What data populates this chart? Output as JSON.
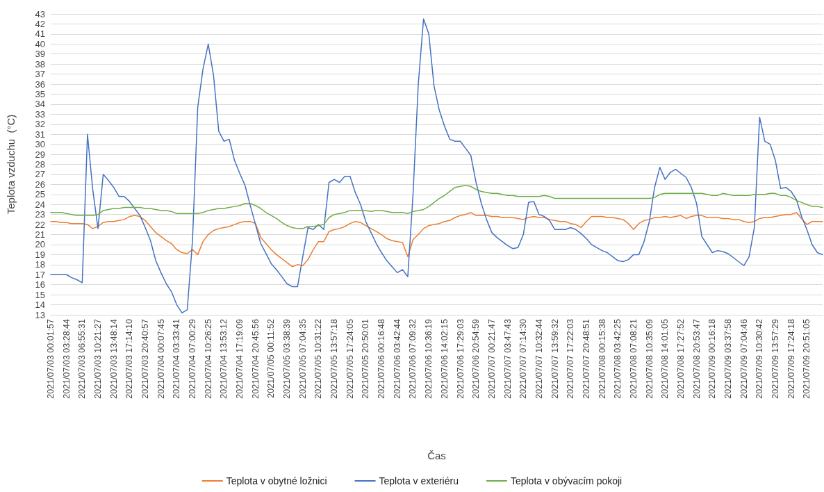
{
  "chart_data": {
    "type": "line",
    "xlabel": "Čas",
    "ylabel": "Teplota vzduchu  (°C)",
    "categories": [
      "2021/07/03 00:01:57",
      null,
      null,
      "2021/07/03 03:28:44",
      null,
      null,
      "2021/07/03 06:55:31",
      null,
      null,
      "2021/07/03 10:21:27",
      null,
      null,
      "2021/07/03 13:48:14",
      null,
      null,
      "2021/07/03 17:14:10",
      null,
      null,
      "2021/07/03 20:40:57",
      null,
      null,
      "2021/07/04 00:07:45",
      null,
      null,
      "2021/07/04 03:33:41",
      null,
      null,
      "2021/07/04 07:00:29",
      null,
      null,
      "2021/07/04 10:26:25",
      null,
      null,
      "2021/07/04 13:53:12",
      null,
      null,
      "2021/07/04 17:19:09",
      null,
      null,
      "2021/07/04 20:45:56",
      null,
      null,
      "2021/07/05 00:11:52",
      null,
      null,
      "2021/07/05 03:38:39",
      null,
      null,
      "2021/07/05 07:04:35",
      null,
      null,
      "2021/07/05 10:31:22",
      null,
      null,
      "2021/07/05 13:57:18",
      null,
      null,
      "2021/07/05 17:24:05",
      null,
      null,
      "2021/07/05 20:50:01",
      null,
      null,
      "2021/07/06 00:16:48",
      null,
      null,
      "2021/07/06 03:42:44",
      null,
      null,
      "2021/07/06 07:09:32",
      null,
      null,
      "2021/07/06 10:36:19",
      null,
      null,
      "2021/07/06 14:02:15",
      null,
      null,
      "2021/07/06 17:29:03",
      null,
      null,
      "2021/07/06 20:54:59",
      null,
      null,
      "2021/07/07 00:21:47",
      null,
      null,
      "2021/07/07 03:47:43",
      null,
      null,
      "2021/07/07 07:14:30",
      null,
      null,
      "2021/07/07 10:32:44",
      null,
      null,
      "2021/07/07 13:59:32",
      null,
      null,
      "2021/07/07 17:22:03",
      null,
      null,
      "2021/07/07 20:48:51",
      null,
      null,
      "2021/07/08 00:15:38",
      null,
      null,
      "2021/07/08 03:42:25",
      null,
      null,
      "2021/07/08 07:08:21",
      null,
      null,
      "2021/07/08 10:35:09",
      null,
      null,
      "2021/07/08 14:01:05",
      null,
      null,
      "2021/07/08 17:27:52",
      null,
      null,
      "2021/07/08 20:53:47",
      null,
      null,
      "2021/07/09 00:16:18",
      null,
      null,
      "2021/07/09 03:37:58",
      null,
      null,
      "2021/07/09 07:04:46",
      null,
      null,
      "2021/07/09 10:30:42",
      null,
      null,
      "2021/07/09 13:57:29",
      null,
      null,
      "2021/07/09 17:24:18",
      null,
      null,
      "2021/07/09 20:51:05",
      null,
      null,
      null
    ],
    "series": [
      {
        "name": "Teplota v obytné ložnici",
        "color": "#ed7d31",
        "values": [
          22.3,
          22.3,
          22.2,
          22.2,
          22.1,
          22.1,
          22.1,
          22.0,
          21.6,
          21.8,
          22.2,
          22.3,
          22.3,
          22.4,
          22.5,
          22.8,
          22.9,
          22.8,
          22.4,
          21.8,
          21.2,
          20.8,
          20.4,
          20.1,
          19.5,
          19.2,
          19.1,
          19.5,
          19.0,
          20.3,
          21.0,
          21.4,
          21.6,
          21.7,
          21.8,
          22.0,
          22.2,
          22.3,
          22.3,
          22.1,
          20.7,
          20.1,
          19.5,
          19.0,
          18.6,
          18.2,
          17.8,
          18.0,
          17.9,
          18.5,
          19.5,
          20.3,
          20.3,
          21.3,
          21.5,
          21.6,
          21.8,
          22.1,
          22.3,
          22.2,
          21.9,
          21.6,
          21.3,
          21.0,
          20.6,
          20.4,
          20.3,
          20.2,
          18.8,
          20.5,
          21.0,
          21.6,
          21.9,
          22.0,
          22.1,
          22.3,
          22.4,
          22.7,
          22.9,
          23.0,
          23.2,
          22.9,
          22.9,
          22.9,
          22.8,
          22.8,
          22.7,
          22.7,
          22.7,
          22.6,
          22.5,
          22.7,
          22.8,
          22.7,
          22.7,
          22.5,
          22.4,
          22.3,
          22.3,
          22.1,
          22.0,
          21.7,
          22.3,
          22.8,
          22.8,
          22.8,
          22.7,
          22.7,
          22.6,
          22.5,
          22.1,
          21.5,
          22.1,
          22.4,
          22.5,
          22.7,
          22.7,
          22.8,
          22.7,
          22.8,
          22.9,
          22.6,
          22.8,
          22.9,
          22.9,
          22.7,
          22.7,
          22.7,
          22.6,
          22.6,
          22.5,
          22.5,
          22.3,
          22.2,
          22.3,
          22.6,
          22.7,
          22.7,
          22.8,
          22.9,
          23.0,
          23.0,
          23.2,
          22.6,
          22.0,
          22.3,
          22.3,
          22.3
        ]
      },
      {
        "name": "Teplota v exteriéru",
        "color": "#4472c4",
        "values": [
          17.0,
          17.0,
          17.0,
          17.0,
          16.7,
          16.5,
          16.2,
          31.0,
          25.5,
          21.6,
          27.0,
          26.4,
          25.7,
          24.8,
          24.8,
          24.3,
          23.6,
          22.9,
          21.7,
          20.4,
          18.4,
          17.2,
          16.1,
          15.3,
          14.0,
          13.2,
          13.5,
          20.4,
          33.7,
          37.5,
          40.0,
          36.9,
          31.3,
          30.3,
          30.5,
          28.4,
          27.1,
          25.9,
          23.9,
          22.0,
          20.1,
          19.1,
          18.1,
          17.5,
          16.8,
          16.1,
          15.8,
          15.8,
          18.8,
          21.7,
          21.5,
          22.0,
          21.5,
          26.2,
          26.5,
          26.2,
          26.8,
          26.8,
          25.2,
          24.0,
          22.3,
          21.2,
          20.1,
          19.2,
          18.4,
          17.8,
          17.2,
          17.5,
          16.8,
          25.0,
          36.0,
          42.5,
          41.0,
          35.8,
          33.4,
          31.8,
          30.5,
          30.3,
          30.3,
          29.6,
          28.9,
          26.2,
          24.1,
          22.5,
          21.2,
          20.7,
          20.3,
          19.9,
          19.6,
          19.7,
          21.0,
          24.2,
          24.3,
          23.0,
          22.8,
          22.4,
          21.5,
          21.5,
          21.5,
          21.7,
          21.5,
          21.1,
          20.6,
          20.0,
          19.7,
          19.4,
          19.2,
          18.8,
          18.4,
          18.3,
          18.5,
          19.0,
          19.0,
          20.3,
          22.3,
          25.7,
          27.7,
          26.5,
          27.2,
          27.5,
          27.1,
          26.7,
          25.7,
          24.1,
          20.8,
          20.0,
          19.2,
          19.4,
          19.3,
          19.1,
          18.7,
          18.3,
          17.9,
          18.8,
          21.7,
          32.7,
          30.3,
          30.0,
          28.4,
          25.6,
          25.7,
          25.3,
          24.5,
          22.8,
          21.5,
          20.0,
          19.2,
          19.0
        ]
      },
      {
        "name": "Teplota v obývacím pokoji",
        "color": "#70ad47",
        "values": [
          23.2,
          23.2,
          23.2,
          23.1,
          23.0,
          22.9,
          22.9,
          22.9,
          22.9,
          23.0,
          23.4,
          23.5,
          23.6,
          23.6,
          23.7,
          23.7,
          23.7,
          23.7,
          23.6,
          23.6,
          23.5,
          23.4,
          23.4,
          23.3,
          23.1,
          23.1,
          23.1,
          23.1,
          23.1,
          23.2,
          23.4,
          23.5,
          23.6,
          23.6,
          23.7,
          23.8,
          23.9,
          24.1,
          24.1,
          23.9,
          23.6,
          23.2,
          22.9,
          22.6,
          22.2,
          21.9,
          21.7,
          21.6,
          21.6,
          21.8,
          21.8,
          21.9,
          22.0,
          22.7,
          23.0,
          23.1,
          23.2,
          23.4,
          23.4,
          23.4,
          23.4,
          23.3,
          23.4,
          23.4,
          23.3,
          23.2,
          23.2,
          23.2,
          23.1,
          23.3,
          23.4,
          23.5,
          23.8,
          24.2,
          24.6,
          24.9,
          25.3,
          25.7,
          25.8,
          25.9,
          25.8,
          25.5,
          25.3,
          25.2,
          25.1,
          25.1,
          25.0,
          24.9,
          24.9,
          24.8,
          24.8,
          24.8,
          24.8,
          24.8,
          24.9,
          24.8,
          24.6,
          24.6,
          24.6,
          24.6,
          24.6,
          24.6,
          24.6,
          24.6,
          24.6,
          24.6,
          24.6,
          24.6,
          24.6,
          24.6,
          24.6,
          24.6,
          24.6,
          24.6,
          24.6,
          24.7,
          25.0,
          25.1,
          25.1,
          25.1,
          25.1,
          25.1,
          25.1,
          25.1,
          25.1,
          25.0,
          24.9,
          24.9,
          25.1,
          25.0,
          24.9,
          24.9,
          24.9,
          24.9,
          25.0,
          25.0,
          25.0,
          25.1,
          25.1,
          24.9,
          24.9,
          24.7,
          24.4,
          24.2,
          24.0,
          23.8,
          23.8,
          23.7
        ]
      }
    ],
    "ylim": [
      13,
      43
    ],
    "yticks": [
      13,
      14,
      15,
      16,
      17,
      18,
      19,
      20,
      21,
      22,
      23,
      24,
      25,
      26,
      27,
      28,
      29,
      30,
      31,
      32,
      33,
      34,
      35,
      36,
      37,
      38,
      39,
      40,
      41,
      42,
      43
    ],
    "grid": "y",
    "legend": "bottom",
    "marker": "none",
    "line_style": "solid"
  }
}
